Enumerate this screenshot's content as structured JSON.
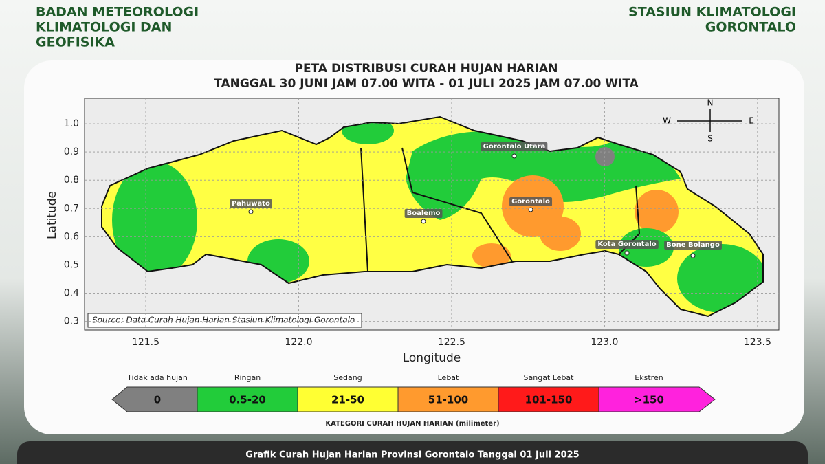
{
  "header": {
    "left": [
      "BADAN METEOROLOGI",
      "KLIMATOLOGI DAN",
      "GEOFISIKA"
    ],
    "right": [
      "STASIUN KLIMATOLOGI",
      "GORONTALO"
    ]
  },
  "map": {
    "title": [
      "PETA DISTRIBUSI CURAH HUJAN HARIAN",
      "TANGGAL 30 JUNI JAM 07.00 WITA - 01 JULI 2025 JAM 07.00 WITA"
    ],
    "xlabel": "Longitude",
    "ylabel": "Latitude",
    "xlim": [
      121.3,
      123.57
    ],
    "ylim": [
      0.27,
      1.09
    ],
    "xticks": [
      121.5,
      {
        "value": 122,
        "label": "122.0"
      },
      122.5,
      {
        "value": 123,
        "label": "123.0"
      },
      123.5
    ],
    "yticks": [
      {
        "value": 1,
        "label": "1.0"
      },
      0.9,
      0.8,
      0.7,
      0.6,
      0.5,
      0.4,
      0.3
    ],
    "places": [
      "Pahuwato",
      "Boalemo",
      "Gorontalo Utara",
      "Gorontalo",
      "Kota Gorontalo",
      "Bone Bolango"
    ],
    "compass": {
      "n": "N",
      "s": "S",
      "e": "E",
      "w": "W"
    },
    "source": "Source: Data Curah Hujan Harian Stasiun Klimatologi Gorontalo"
  },
  "legend": {
    "title": "KATEGORI CURAH HUJAN HARIAN (milimeter)",
    "items": [
      {
        "name": "Tidak ada hujan",
        "range": "0",
        "color": "#808080"
      },
      {
        "name": "Ringan",
        "range": "0.5-20",
        "color": "#22cc3a"
      },
      {
        "name": "Sedang",
        "range": "21-50",
        "color": "#ffff33"
      },
      {
        "name": "Lebat",
        "range": "51-100",
        "color": "#ff9a2e"
      },
      {
        "name": "Sangat Lebat",
        "range": "101-150",
        "color": "#ff1a1a"
      },
      {
        "name": "Ekstren",
        "range": ">150",
        "color": "#ff22dd"
      }
    ]
  },
  "footer": "Grafik Curah Hujan Harian Provinsi Gorontalo Tanggal 01 Juli 2025"
}
